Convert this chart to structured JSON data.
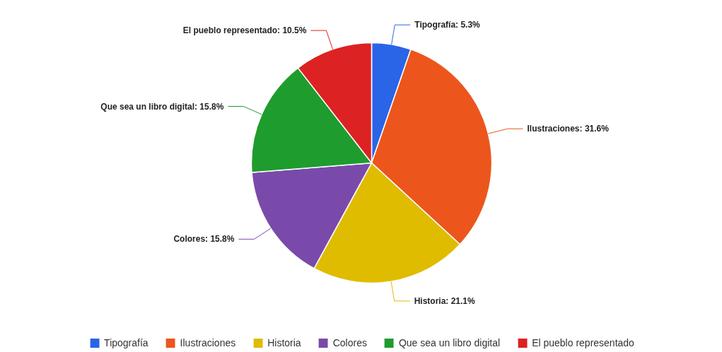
{
  "chart_data": {
    "type": "pie",
    "categories": [
      "Tipografía",
      "Ilustraciones",
      "Historia",
      "Colores",
      "Que sea un libro digital",
      "El pueblo representado"
    ],
    "values": [
      5.3,
      31.6,
      21.1,
      15.8,
      15.8,
      10.5
    ],
    "colors": [
      "#2a65e8",
      "#ec561c",
      "#dfbc00",
      "#7a4aab",
      "#1e9c2e",
      "#dc2222"
    ],
    "value_labels": [
      "Tipografía: 5.3%",
      "Ilustraciones: 31.6%",
      "Historia: 21.1%",
      "Colores: 15.8%",
      "Que sea un libro digital: 15.8%",
      "El pueblo representado: 10.5%"
    ],
    "legend": "bottom"
  }
}
